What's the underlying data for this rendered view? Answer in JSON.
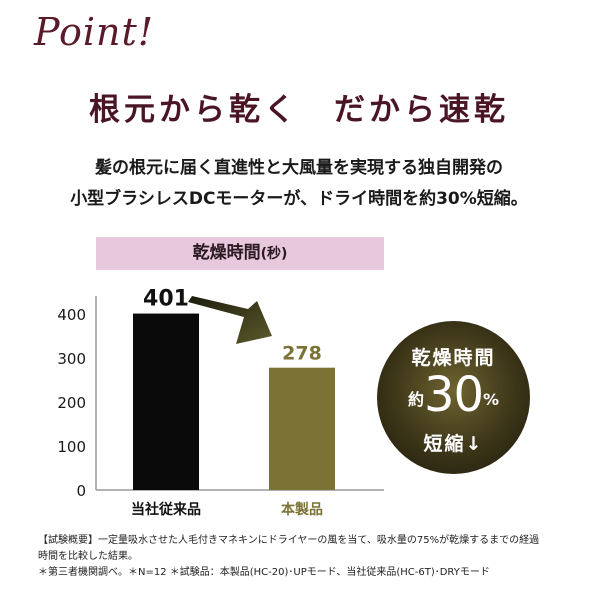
{
  "point_label": "Point!",
  "heading": "根元から乾く　だから速乾",
  "description": {
    "line1": "髪の根元に届く直進性と大風量を実現する独自開発の",
    "line2": "小型ブラシレスDCモーターが、ドライ時間を約30%短縮。"
  },
  "chart_data": {
    "type": "bar",
    "title": "乾燥時間",
    "title_unit": "(秒)",
    "categories": [
      "当社従来品",
      "本製品"
    ],
    "values": [
      401,
      278
    ],
    "value_labels": [
      "401",
      "278"
    ],
    "bar_colors": [
      "#0a0a0a",
      "#7b7234"
    ],
    "label_colors": [
      "#111111",
      "#7b7234"
    ],
    "yticks": [
      0,
      100,
      200,
      300,
      400
    ],
    "ylim": [
      0,
      430
    ],
    "grid": false,
    "arrow_color": "#5c5a2a"
  },
  "badge": {
    "line1": "乾燥時間",
    "prefix": "約",
    "number": "30",
    "suffix": "%",
    "line3": "短縮↓"
  },
  "notes": {
    "line1": "【試験概要】一定量吸水させた人毛付きマネキンにドライヤーの風を当て、吸水量の75%が乾燥するまでの経過",
    "line2": "時間を比較した結果。",
    "line3": "＊第三者機関調べ。＊N=12 ＊試験品：本製品(HC-20)･UPモード、当社従来品(HC-6T)･DRYモード"
  }
}
